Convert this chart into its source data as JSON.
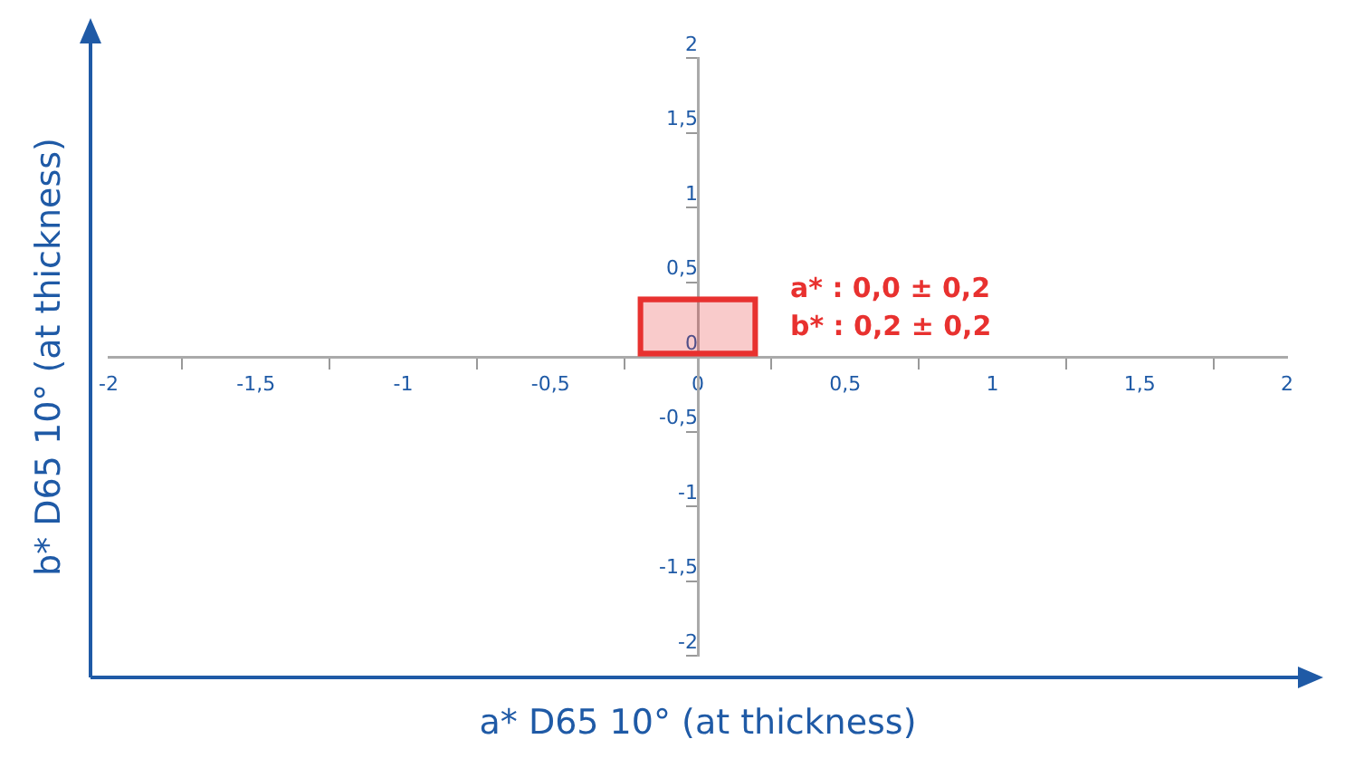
{
  "chart_data": {
    "type": "bar",
    "xlabel": "a* D65 10° (at thickness)",
    "ylabel": "b* D65 10° (at thickness)",
    "x": [
      0
    ],
    "series": [
      {
        "color": "#e8312f",
        "values": [
          0.4
        ]
      }
    ],
    "grid": false,
    "legend": false,
    "xlim": [
      -2,
      2
    ],
    "ylim": [
      -2,
      2
    ],
    "xticks": [
      -2,
      {
        "value": -1.5,
        "label": "-1,5"
      },
      -1,
      {
        "value": -0.5,
        "label": "-0,5"
      },
      0,
      {
        "value": 0.5,
        "label": "0,5"
      },
      1,
      {
        "value": 1.5,
        "label": "1,5"
      },
      2
    ],
    "yticks": [
      -2,
      {
        "value": -1.5,
        "label": "-1,5"
      },
      -1,
      {
        "value": -0.5,
        "label": "-0,5"
      },
      0,
      {
        "value": 0.5,
        "label": "0,5"
      },
      1,
      {
        "value": 1.5,
        "label": "1,5"
      },
      2
    ],
    "annotations": [
      "a* : 0,0 ± 0,2",
      "b* : 0,2 ± 0,2"
    ]
  }
}
